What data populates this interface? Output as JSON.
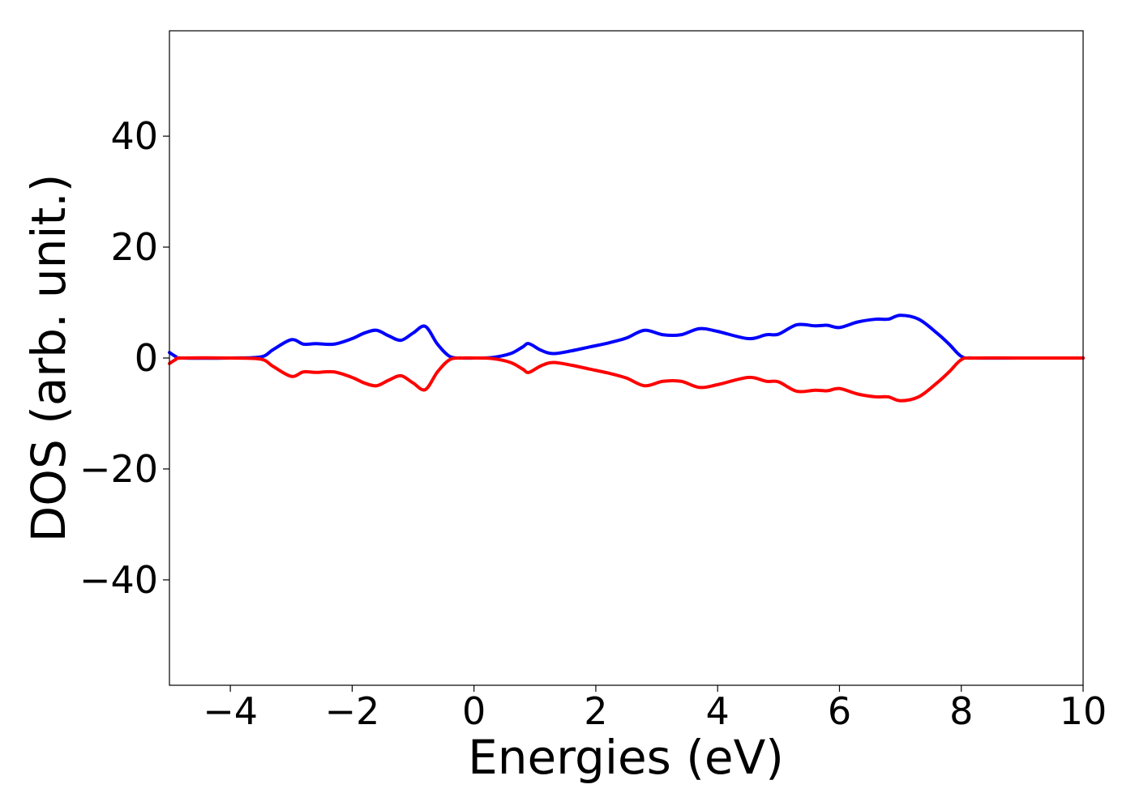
{
  "chart_data": {
    "type": "line",
    "title": "",
    "xlabel": "Energies (eV)",
    "ylabel": "DOS (arb. unit.)",
    "xlim": [
      -5,
      10
    ],
    "ylim": [
      -59,
      59
    ],
    "grid": false,
    "legend": "none",
    "xticks": [
      -4,
      -2,
      0,
      2,
      4,
      6,
      8,
      10
    ],
    "xtick_labels": [
      "−4",
      "−2",
      "0",
      "2",
      "4",
      "6",
      "8",
      "10"
    ],
    "yticks": [
      40,
      20,
      0,
      -20,
      -40
    ],
    "ytick_labels": [
      "40",
      "20",
      "0",
      "−20",
      "−40"
    ],
    "series": [
      {
        "color": "#0000ff",
        "x": [
          -5.0,
          -4.9,
          -4.8,
          -4.0,
          -3.5,
          -3.3,
          -3.0,
          -2.8,
          -2.6,
          -2.3,
          -2.0,
          -1.8,
          -1.6,
          -1.4,
          -1.2,
          -1.0,
          -0.8,
          -0.6,
          -0.4,
          -0.2,
          0.0,
          0.3,
          0.6,
          0.8,
          0.9,
          1.1,
          1.3,
          1.6,
          1.9,
          2.2,
          2.5,
          2.8,
          3.1,
          3.4,
          3.7,
          4.0,
          4.5,
          4.8,
          5.0,
          5.3,
          5.6,
          5.8,
          6.0,
          6.3,
          6.6,
          6.8,
          7.0,
          7.3,
          7.6,
          7.8,
          8.0,
          8.2,
          9.0,
          10.0
        ],
        "y": [
          1.0,
          0.3,
          0.0,
          0.0,
          0.2,
          1.5,
          3.3,
          2.5,
          2.6,
          2.5,
          3.5,
          4.5,
          5.0,
          4.0,
          3.2,
          4.5,
          5.7,
          2.5,
          0.3,
          0.0,
          0.0,
          0.1,
          0.8,
          2.0,
          2.6,
          1.4,
          0.8,
          1.3,
          2.0,
          2.7,
          3.6,
          5.0,
          4.2,
          4.2,
          5.3,
          4.8,
          3.5,
          4.2,
          4.3,
          6.0,
          5.8,
          5.9,
          5.5,
          6.5,
          7.0,
          7.0,
          7.7,
          7.0,
          4.5,
          2.5,
          0.3,
          0.0,
          0.0,
          0.0
        ]
      },
      {
        "color": "#ff0000",
        "x": [
          -5.0,
          -4.9,
          -4.8,
          -4.0,
          -3.5,
          -3.3,
          -3.0,
          -2.8,
          -2.6,
          -2.3,
          -2.0,
          -1.8,
          -1.6,
          -1.4,
          -1.2,
          -1.0,
          -0.8,
          -0.6,
          -0.4,
          -0.2,
          0.0,
          0.3,
          0.6,
          0.8,
          0.9,
          1.1,
          1.3,
          1.6,
          1.9,
          2.2,
          2.5,
          2.8,
          3.1,
          3.4,
          3.7,
          4.0,
          4.5,
          4.8,
          5.0,
          5.3,
          5.6,
          5.8,
          6.0,
          6.3,
          6.6,
          6.8,
          7.0,
          7.3,
          7.6,
          7.8,
          8.0,
          8.2,
          9.0,
          10.0
        ],
        "y": [
          -1.0,
          -0.3,
          0.0,
          0.0,
          -0.2,
          -1.5,
          -3.3,
          -2.5,
          -2.6,
          -2.5,
          -3.5,
          -4.5,
          -5.0,
          -4.0,
          -3.2,
          -4.5,
          -5.7,
          -2.5,
          -0.3,
          0.0,
          0.0,
          -0.1,
          -0.8,
          -2.0,
          -2.6,
          -1.4,
          -0.8,
          -1.3,
          -2.0,
          -2.7,
          -3.6,
          -5.0,
          -4.2,
          -4.2,
          -5.3,
          -4.8,
          -3.5,
          -4.2,
          -4.3,
          -6.0,
          -5.8,
          -5.9,
          -5.5,
          -6.5,
          -7.0,
          -7.0,
          -7.7,
          -7.0,
          -4.5,
          -2.5,
          -0.3,
          0.0,
          0.0,
          0.0
        ]
      }
    ]
  }
}
